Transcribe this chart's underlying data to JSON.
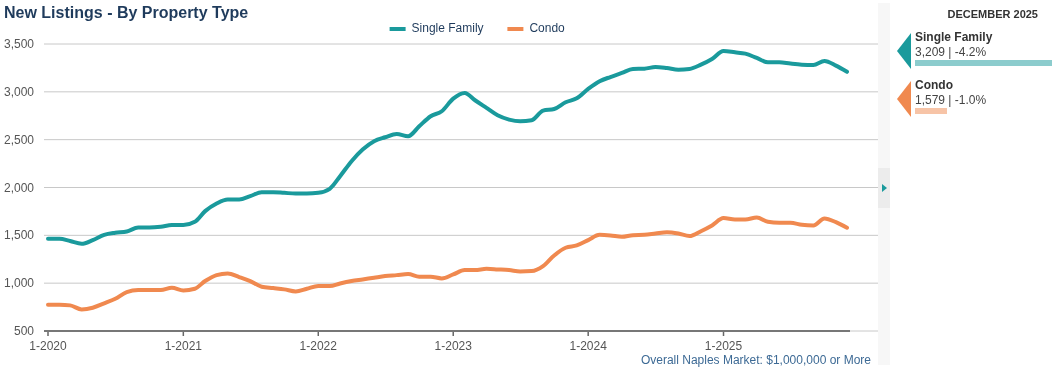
{
  "chart_data": [
    {
      "type": "line",
      "title": "New Listings - By Property Type",
      "x": [
        "2020-01",
        "2020-02",
        "2020-03",
        "2020-04",
        "2020-05",
        "2020-06",
        "2020-07",
        "2020-08",
        "2020-09",
        "2020-10",
        "2020-11",
        "2020-12",
        "2021-01",
        "2021-02",
        "2021-03",
        "2021-04",
        "2021-05",
        "2021-06",
        "2021-07",
        "2021-08",
        "2021-09",
        "2021-10",
        "2021-11",
        "2021-12",
        "2022-01",
        "2022-02",
        "2022-03",
        "2022-04",
        "2022-05",
        "2022-06",
        "2022-07",
        "2022-08",
        "2022-09",
        "2022-10",
        "2022-11",
        "2022-12",
        "2023-01",
        "2023-02",
        "2023-03",
        "2023-04",
        "2023-05",
        "2023-06",
        "2023-07",
        "2023-08",
        "2023-09",
        "2023-10",
        "2023-11",
        "2023-12",
        "2024-01",
        "2024-02",
        "2024-03",
        "2024-04",
        "2024-05",
        "2024-06",
        "2024-07",
        "2024-08",
        "2024-09",
        "2024-10",
        "2024-11",
        "2024-12",
        "2025-01",
        "2025-02",
        "2025-03",
        "2025-04",
        "2025-05",
        "2025-06",
        "2025-07",
        "2025-08",
        "2025-09",
        "2025-10",
        "2025-11",
        "2025-12"
      ],
      "series": [
        {
          "name": "Single Family",
          "color": "#1a9a9c",
          "values": [
            1464,
            1464,
            1440,
            1412,
            1450,
            1505,
            1527,
            1540,
            1582,
            1582,
            1590,
            1607,
            1607,
            1641,
            1753,
            1833,
            1875,
            1875,
            1910,
            1951,
            1951,
            1944,
            1937,
            1937,
            1944,
            1986,
            2118,
            2275,
            2397,
            2484,
            2525,
            2560,
            2536,
            2640,
            2745,
            2797,
            2929,
            2988,
            2912,
            2832,
            2755,
            2710,
            2692,
            2703,
            2804,
            2821,
            2891,
            2933,
            3030,
            3110,
            3155,
            3197,
            3239,
            3242,
            3260,
            3249,
            3232,
            3239,
            3284,
            3343,
            3427,
            3413,
            3399,
            3354,
            3309,
            3309,
            3295,
            3284,
            3281,
            3323,
            3274,
            3209
          ]
        },
        {
          "name": "Condo",
          "color": "#f0894f",
          "values": [
            775,
            775,
            768,
            726,
            743,
            789,
            837,
            907,
            928,
            928,
            928,
            952,
            924,
            942,
            1022,
            1084,
            1102,
            1064,
            1022,
            963,
            949,
            935,
            914,
            942,
            970,
            970,
            997,
            1022,
            1039,
            1057,
            1074,
            1084,
            1095,
            1067,
            1067,
            1050,
            1091,
            1137,
            1137,
            1150,
            1144,
            1137,
            1123,
            1126,
            1178,
            1290,
            1370,
            1394,
            1450,
            1505,
            1499,
            1485,
            1502,
            1505,
            1519,
            1533,
            1519,
            1492,
            1543,
            1603,
            1680,
            1666,
            1666,
            1687,
            1641,
            1631,
            1631,
            1610,
            1603,
            1676,
            1638,
            1579
          ]
        }
      ],
      "xlim": [
        "2020-01",
        "2025-12"
      ],
      "xticks": [
        {
          "value": "2020-01",
          "label": "1-2020"
        },
        {
          "value": "2021-01",
          "label": "1-2021"
        },
        {
          "value": "2022-01",
          "label": "1-2022"
        },
        {
          "value": "2023-01",
          "label": "1-2023"
        },
        {
          "value": "2024-01",
          "label": "1-2024"
        },
        {
          "value": "2025-01",
          "label": "1-2025"
        }
      ],
      "ylim": [
        500,
        3500
      ],
      "yticks": [
        {
          "value": 500,
          "label": "500"
        },
        {
          "value": 1000,
          "label": "1,000"
        },
        {
          "value": 1500,
          "label": "1,500"
        },
        {
          "value": 2000,
          "label": "2,000"
        },
        {
          "value": 2500,
          "label": "2,500"
        },
        {
          "value": 3000,
          "label": "3,000"
        },
        {
          "value": 3500,
          "label": "3,500"
        }
      ],
      "grid": "y",
      "legend": "top",
      "marker": "none",
      "line_style": "solid",
      "annotations": [
        "Overall Naples Market: $1,000,000 or More"
      ]
    },
    {
      "type": "other",
      "title": "DECEMBER 2025",
      "annotations": [
        "Single Family",
        "3,209 | -4.2%",
        "Condo",
        "1,579 | -1.0%"
      ]
    }
  ]
}
